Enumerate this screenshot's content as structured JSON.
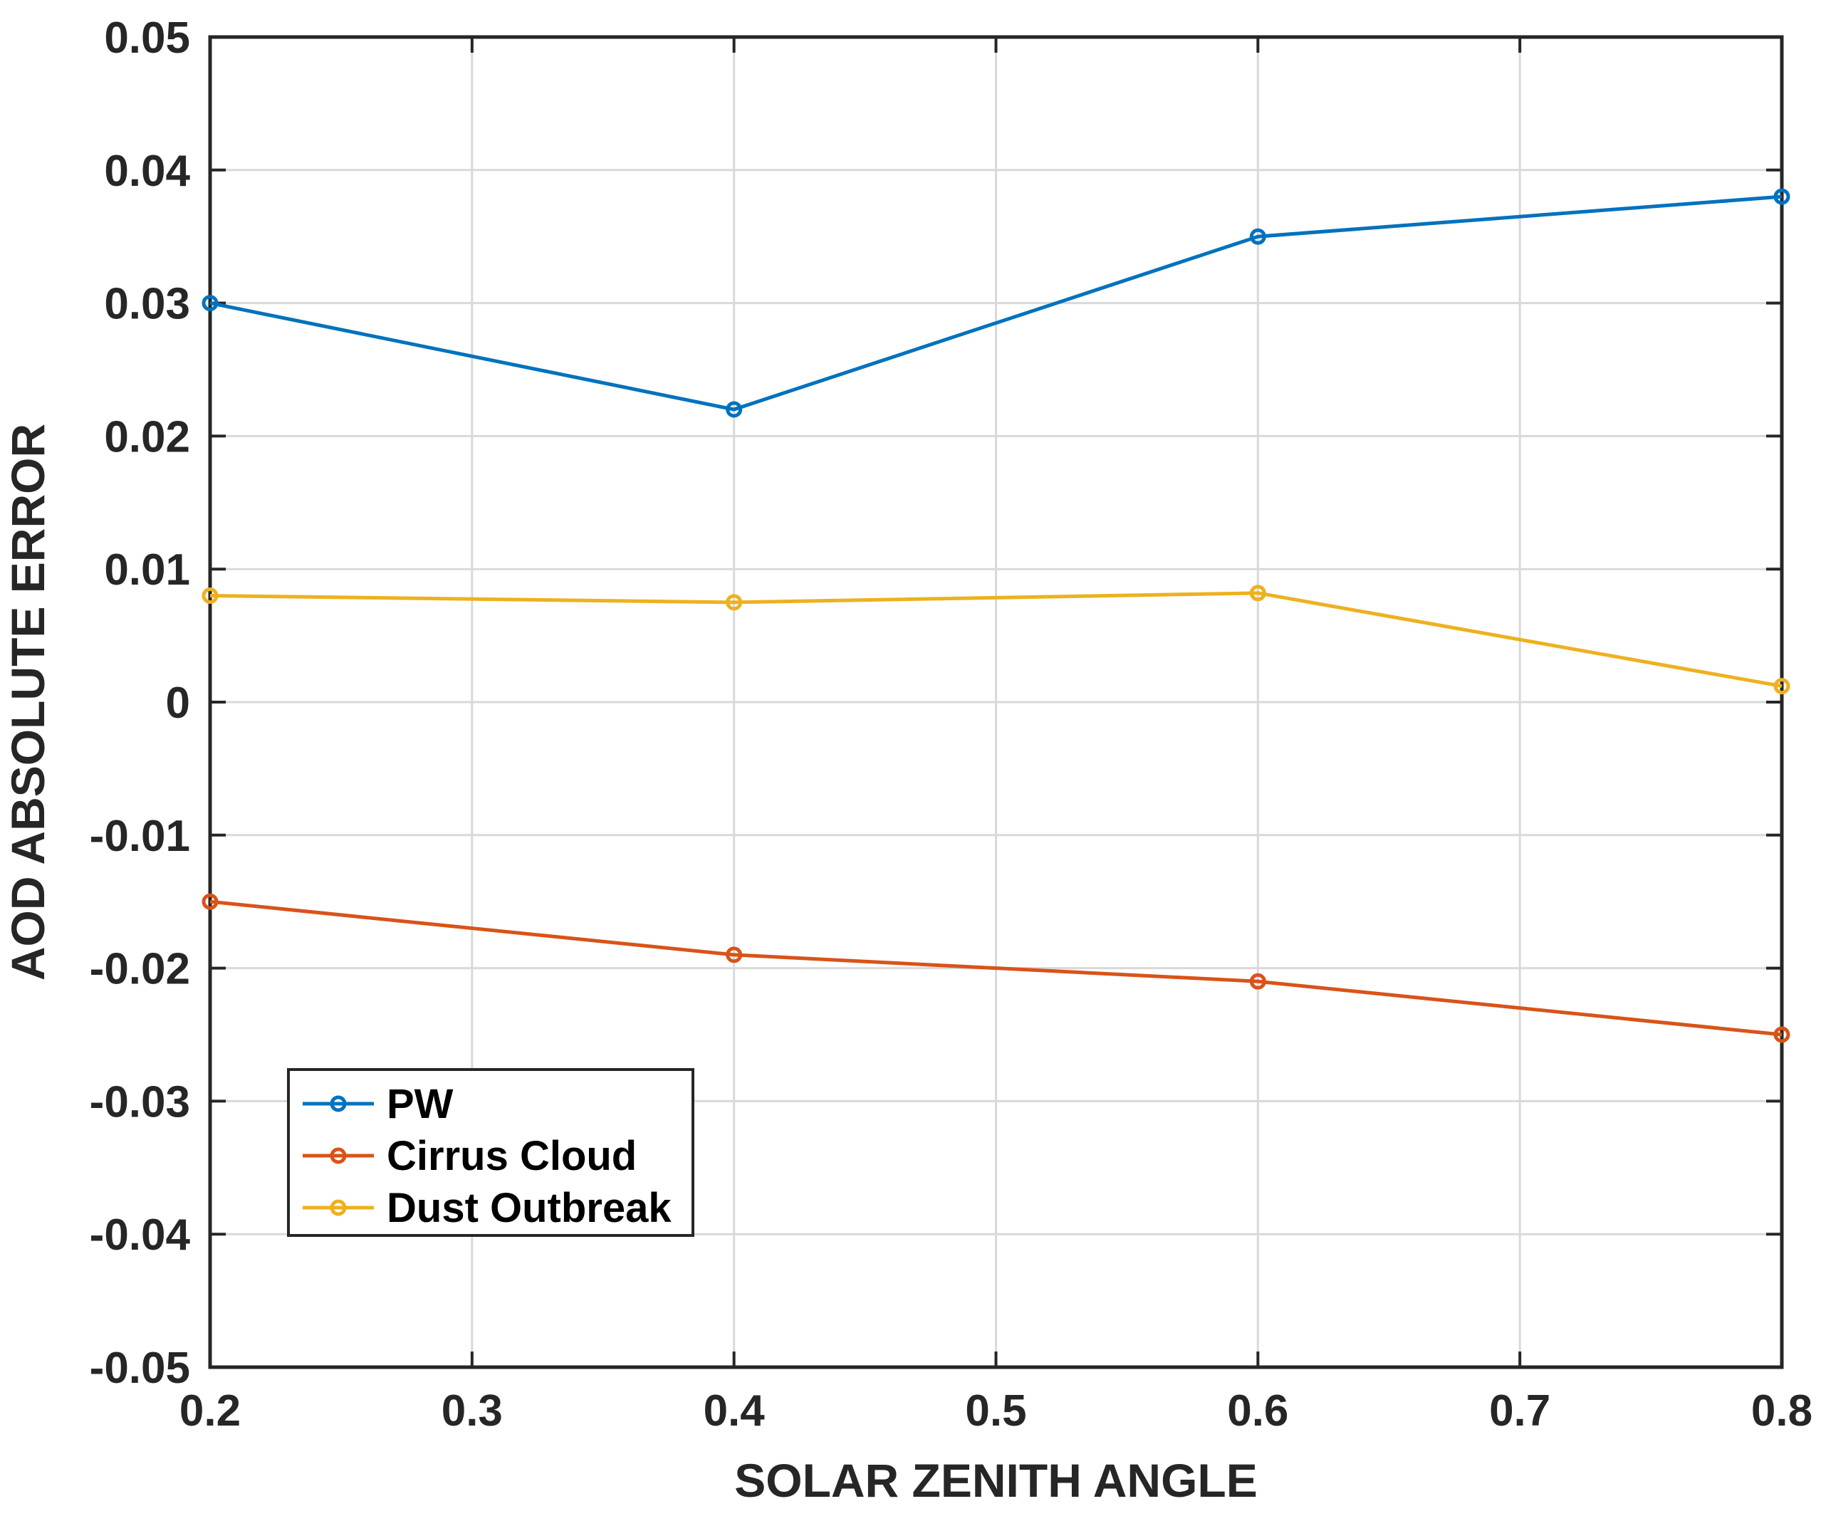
{
  "chart_data": {
    "type": "line",
    "title": "",
    "xlabel": "SOLAR ZENITH ANGLE",
    "ylabel": "AOD ABSOLUTE ERROR",
    "xlim": [
      0.2,
      0.8
    ],
    "ylim": [
      -0.05,
      0.05
    ],
    "xticks": [
      "0.2",
      "0.3",
      "0.4",
      "0.5",
      "0.6",
      "0.7",
      "0.8"
    ],
    "xtick_values": [
      0.2,
      0.3,
      0.4,
      0.5,
      0.6,
      0.7,
      0.8
    ],
    "yticks": [
      "0.05",
      "0.04",
      "0.03",
      "0.02",
      "0.01",
      "0",
      "-0.01",
      "-0.02",
      "-0.03",
      "-0.04",
      "-0.05"
    ],
    "ytick_values": [
      0.05,
      0.04,
      0.03,
      0.02,
      0.01,
      0,
      -0.01,
      -0.02,
      -0.03,
      -0.04,
      -0.05
    ],
    "grid": true,
    "legend_position": "bottom-left",
    "x": [
      0.2,
      0.4,
      0.6,
      0.8
    ],
    "series": [
      {
        "name": "PW",
        "color": "#0072BD",
        "marker": "circle",
        "values": [
          0.03,
          0.022,
          0.035,
          0.038
        ]
      },
      {
        "name": "Cirrus Cloud",
        "color": "#D95319",
        "marker": "circle",
        "values": [
          -0.015,
          -0.019,
          -0.021,
          -0.025
        ]
      },
      {
        "name": "Dust Outbreak",
        "color": "#EDB120",
        "marker": "circle",
        "values": [
          0.008,
          0.0075,
          0.0082,
          0.0012
        ]
      }
    ]
  }
}
